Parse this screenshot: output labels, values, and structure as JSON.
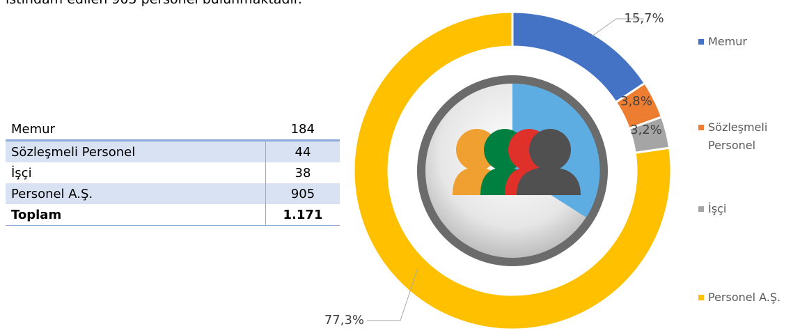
{
  "intro": "istihdam edilen 905 personel bulunmaktadır.",
  "table": {
    "rows": [
      [
        "Memur",
        "184"
      ],
      [
        "Sözleşmeli Personel",
        "44"
      ],
      [
        "İşçi",
        "38"
      ],
      [
        "Personel A.Ş.",
        "905"
      ],
      [
        "Toplam",
        "1.171"
      ]
    ]
  },
  "chart_data": {
    "type": "pie",
    "categories": [
      "Memur",
      "Sözleşmeli Personel",
      "İşçi",
      "Personel A.Ş."
    ],
    "values": [
      15.7,
      3.8,
      3.2,
      77.3
    ],
    "value_labels": [
      "15,7%",
      "3,8%",
      "3,2%",
      "77,3%"
    ],
    "colors": [
      "#4472c4",
      "#ed7d31",
      "#a5a5a5",
      "#ffc000"
    ]
  }
}
